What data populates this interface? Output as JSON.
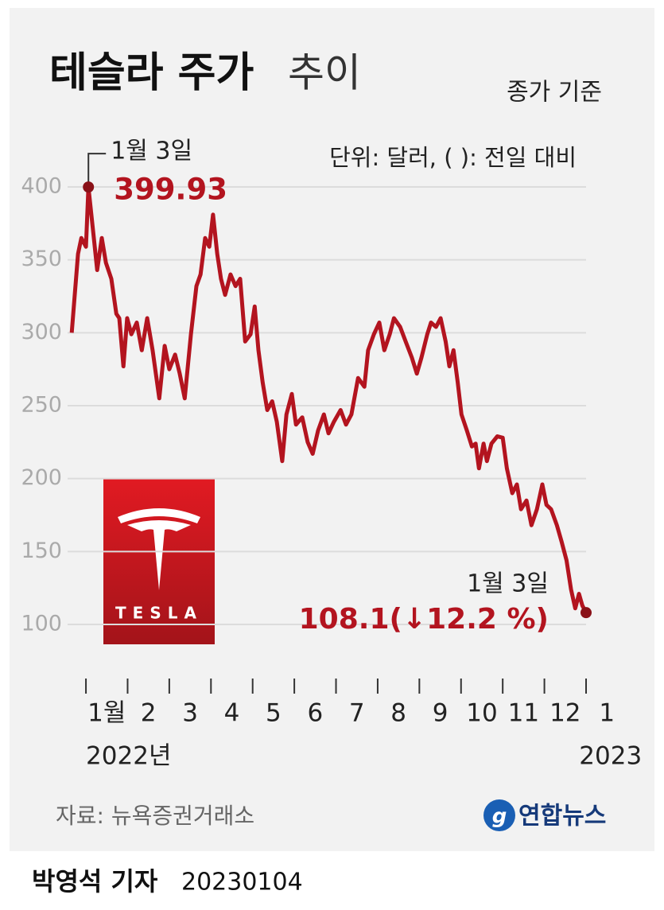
{
  "chart_data": {
    "type": "line",
    "title": "테슬라 주가",
    "title_suffix": "추이",
    "subtitle": "종가 기준",
    "unit_note": "단위: 달러, (  ): 전일 대비",
    "color": "#b3141f",
    "x": [
      0.66,
      0.81,
      0.89,
      1.0,
      1.06,
      1.19,
      1.27,
      1.38,
      1.48,
      1.61,
      1.73,
      1.8,
      1.9,
      1.99,
      2.09,
      2.22,
      2.34,
      2.47,
      2.6,
      2.76,
      2.89,
      3.0,
      3.14,
      3.25,
      3.37,
      3.52,
      3.65,
      3.75,
      3.86,
      3.96,
      4.05,
      4.15,
      4.24,
      4.34,
      4.47,
      4.59,
      4.7,
      4.82,
      4.95,
      5.05,
      5.14,
      5.24,
      5.35,
      5.47,
      5.58,
      5.71,
      5.81,
      5.94,
      6.04,
      6.19,
      6.32,
      6.44,
      6.57,
      6.71,
      6.82,
      6.95,
      7.11,
      7.24,
      7.37,
      7.53,
      7.68,
      7.77,
      7.91,
      8.04,
      8.16,
      8.29,
      8.39,
      8.54,
      8.67,
      8.82,
      8.94,
      9.05,
      9.19,
      9.28,
      9.4,
      9.51,
      9.63,
      9.72,
      9.82,
      9.92,
      10.01,
      10.14,
      10.26,
      10.35,
      10.43,
      10.54,
      10.62,
      10.73,
      10.87,
      11.0,
      11.1,
      11.23,
      11.34,
      11.44,
      11.57,
      11.69,
      11.82,
      11.95,
      12.05,
      12.16,
      12.3,
      12.41,
      12.53,
      12.64,
      12.74,
      12.83,
      12.91,
      13.0
    ],
    "values": [
      300,
      354,
      365,
      359,
      399.93,
      365,
      343,
      365,
      348,
      337,
      313,
      310,
      277,
      310,
      299,
      307,
      288,
      310,
      288,
      255,
      291,
      275,
      285,
      272,
      255,
      299,
      332,
      340,
      365,
      359,
      381,
      354,
      337,
      326,
      340,
      332,
      337,
      294,
      299,
      318,
      288,
      266,
      247,
      253,
      239,
      212,
      244,
      258,
      237,
      242,
      225,
      217,
      233,
      244,
      231,
      239,
      247,
      237,
      244,
      269,
      263,
      288,
      299,
      307,
      288,
      299,
      310,
      304,
      294,
      283,
      272,
      283,
      299,
      307,
      304,
      310,
      294,
      277,
      288,
      266,
      244,
      233,
      222,
      224,
      207,
      224,
      212,
      224,
      229,
      228,
      207,
      190,
      196,
      179,
      185,
      168,
      179,
      196,
      182,
      179,
      168,
      157,
      144,
      124,
      111,
      121,
      113,
      108.1
    ],
    "xlim": [
      0.56,
      13
    ],
    "xticks": [
      {
        "value": 1,
        "label": "1월"
      },
      {
        "value": 2,
        "label": "2"
      },
      {
        "value": 3,
        "label": "3"
      },
      {
        "value": 4,
        "label": "4"
      },
      {
        "value": 5,
        "label": "5"
      },
      {
        "value": 6,
        "label": "6"
      },
      {
        "value": 7,
        "label": "7"
      },
      {
        "value": 8,
        "label": "8"
      },
      {
        "value": 9,
        "label": "9"
      },
      {
        "value": 10,
        "label": "10"
      },
      {
        "value": 11,
        "label": "11"
      },
      {
        "value": 12,
        "label": "12"
      },
      {
        "value": 13,
        "label": "1"
      }
    ],
    "years": [
      "2022년",
      "2023"
    ],
    "ylim": [
      100,
      400
    ],
    "yticks": [
      100,
      150,
      200,
      250,
      300,
      350,
      400
    ],
    "grid": true,
    "annotations": [
      {
        "date": "1월 3일",
        "label": "399.93"
      },
      {
        "date": "1월 3일",
        "label": "108.1(↓12.2 %)"
      }
    ],
    "logo_text": "TESLA",
    "source": "자료: 뉴욕증권거래소",
    "agency": "연합뉴스",
    "byline": "박영석 기자",
    "date": "20230104"
  }
}
